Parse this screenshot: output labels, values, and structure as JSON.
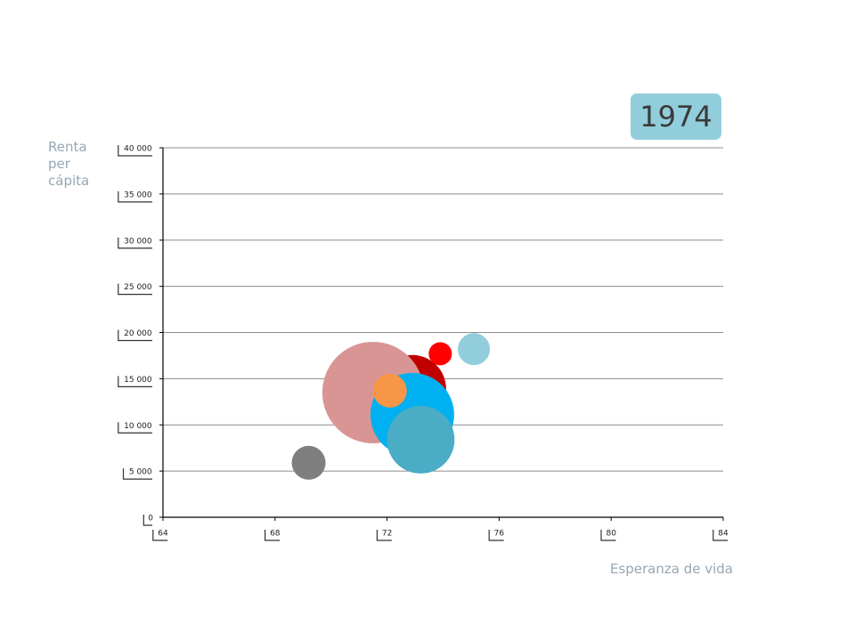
{
  "chart_data": {
    "type": "scatter",
    "title": "",
    "year_label": "1974",
    "xlabel": "Esperanza de vida",
    "ylabel": [
      "Renta",
      "per",
      "cápita"
    ],
    "xlim": [
      64,
      84
    ],
    "ylim": [
      0,
      40000
    ],
    "x_ticks": [
      64,
      68,
      72,
      76,
      80,
      84
    ],
    "y_ticks": [
      0,
      5000,
      10000,
      15000,
      20000,
      25000,
      30000,
      35000,
      40000
    ],
    "x_tick_labels": [
      "64",
      "68",
      "72",
      "76",
      "80",
      "84"
    ],
    "y_tick_labels": [
      "0",
      "5 000",
      "10 000",
      "15 000",
      "20 000",
      "25 000",
      "30 000",
      "35 000",
      "40 000"
    ],
    "grid": true,
    "legend": "none",
    "series": [
      {
        "x": 72.9,
        "y": 13900,
        "size": 38,
        "color": "#c00000"
      },
      {
        "x": 73.9,
        "y": 17700,
        "size": 13,
        "color": "#ff0000"
      },
      {
        "x": 75.1,
        "y": 18200,
        "size": 18,
        "color": "#92cddc"
      },
      {
        "x": 71.5,
        "y": 13500,
        "size": 57,
        "color": "#d99594"
      },
      {
        "x": 72.9,
        "y": 11100,
        "size": 47,
        "color": "#00b0f0"
      },
      {
        "x": 73.2,
        "y": 8400,
        "size": 38,
        "color": "#4bacc6"
      },
      {
        "x": 72.1,
        "y": 13700,
        "size": 19,
        "color": "#f79646"
      },
      {
        "x": 69.2,
        "y": 5900,
        "size": 19,
        "color": "#7f7f7f"
      }
    ]
  }
}
